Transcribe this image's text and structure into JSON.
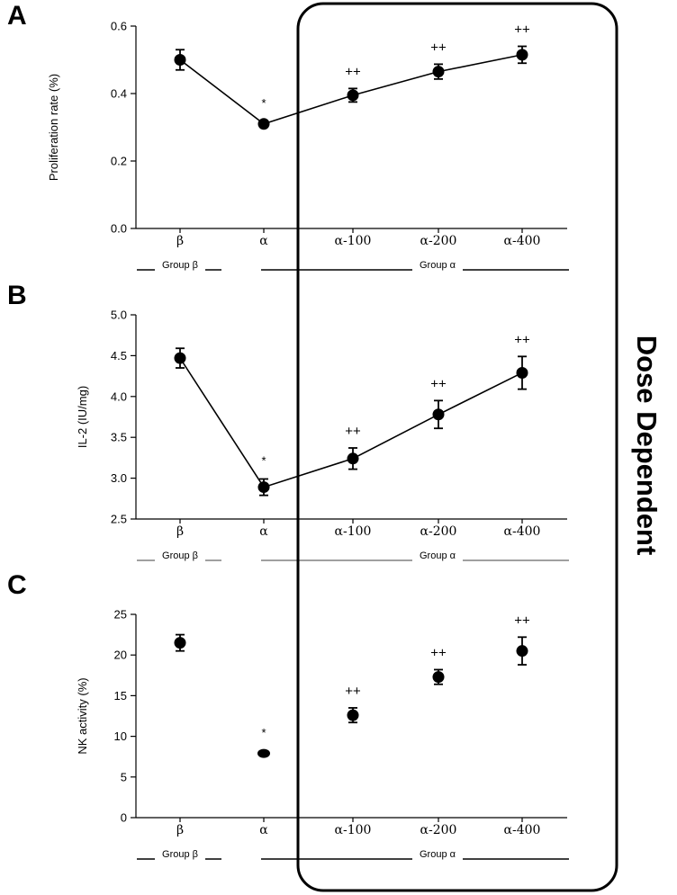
{
  "annotation": {
    "label": "Dose Dependent"
  },
  "chart_data": [
    {
      "panel": "A",
      "type": "line",
      "ylabel": "Proliferation rate (%)",
      "ylim": [
        0.0,
        0.6
      ],
      "yticks": [
        "0.0",
        "0.2",
        "0.4",
        "0.6"
      ],
      "categories": [
        "β",
        "α",
        "α-100",
        "α-200",
        "α-400"
      ],
      "values": [
        0.5,
        0.31,
        0.395,
        0.465,
        0.515
      ],
      "errors": [
        0.03,
        0.008,
        0.02,
        0.022,
        0.025
      ],
      "markers": [
        "",
        "*",
        "++",
        "++",
        "++"
      ],
      "groups": [
        {
          "label": "Group β"
        },
        {
          "label": "Group α"
        }
      ],
      "connected": true
    },
    {
      "panel": "B",
      "type": "line",
      "ylabel": "IL-2 (IU/mg)",
      "ylim": [
        2.5,
        5.0
      ],
      "yticks": [
        "2.5",
        "3.0",
        "3.5",
        "4.0",
        "4.5",
        "5.0"
      ],
      "categories": [
        "β",
        "α",
        "α-100",
        "α-200",
        "α-400"
      ],
      "values": [
        4.47,
        2.89,
        3.24,
        3.78,
        4.29
      ],
      "errors": [
        0.12,
        0.1,
        0.13,
        0.17,
        0.2
      ],
      "markers": [
        "",
        "*",
        "++",
        "++",
        "++"
      ],
      "groups": [
        {
          "label": "Group β"
        },
        {
          "label": "Group α"
        }
      ],
      "connected": true
    },
    {
      "panel": "C",
      "type": "scatter",
      "ylabel": "NK activity (%)",
      "ylim": [
        0,
        25
      ],
      "yticks": [
        "0",
        "5",
        "10",
        "15",
        "20",
        "25"
      ],
      "categories": [
        "β",
        "α",
        "α-100",
        "α-200",
        "α-400"
      ],
      "values": [
        21.5,
        7.9,
        12.6,
        17.3,
        20.5
      ],
      "errors": [
        1.0,
        0.3,
        0.9,
        0.9,
        1.7
      ],
      "markers": [
        "",
        "*",
        "++",
        "++",
        "++"
      ],
      "groups": [
        {
          "label": "Group β"
        },
        {
          "label": "Group α"
        }
      ],
      "connected": false
    }
  ]
}
